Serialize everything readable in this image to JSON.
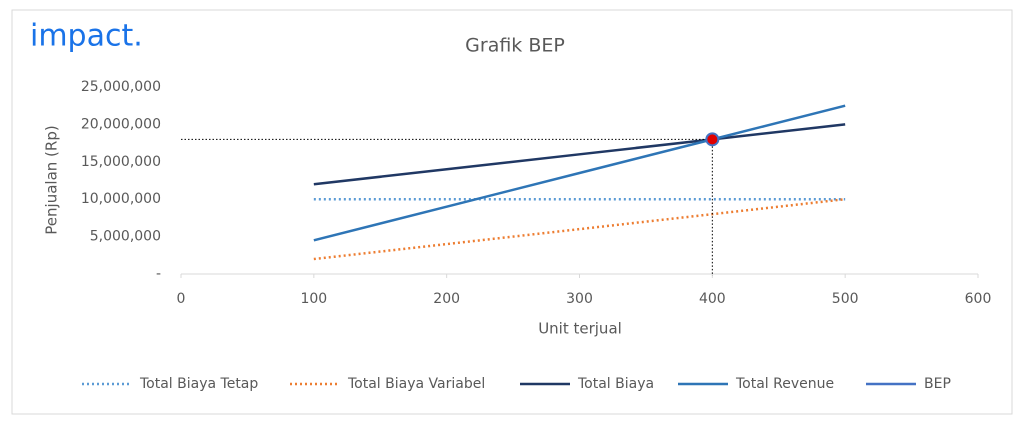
{
  "logo": "impact.",
  "chart_data": {
    "type": "line",
    "title": "Grafik BEP",
    "x_label": "Unit terjual",
    "y_label": "Penjualan (Rp)",
    "x": [
      100,
      200,
      300,
      400,
      500
    ],
    "xlim": [
      0,
      600
    ],
    "xticks": [
      0,
      100,
      200,
      300,
      400,
      500,
      600
    ],
    "ylim": [
      0,
      25000000
    ],
    "yticks": [
      {
        "value": 0,
        "label": "-"
      },
      {
        "value": 5000000,
        "label": "5,000,000"
      },
      {
        "value": 10000000,
        "label": "10,000,000"
      },
      {
        "value": 15000000,
        "label": "15,000,000"
      },
      {
        "value": 20000000,
        "label": "20,000,000"
      },
      {
        "value": 25000000,
        "label": "25,000,000"
      }
    ],
    "grid": false,
    "legend": "bottom",
    "series": [
      {
        "name": "Total Biaya Tetap",
        "color": "#5b9bd5",
        "style": "dotted",
        "values": [
          10000000,
          10000000,
          10000000,
          10000000,
          10000000
        ]
      },
      {
        "name": "Total Biaya Variabel",
        "color": "#ed7d31",
        "style": "dotted",
        "values": [
          2000000,
          4000000,
          6000000,
          8000000,
          10000000
        ]
      },
      {
        "name": "Total Biaya",
        "color": "#203864",
        "style": "solid",
        "values": [
          12000000,
          14000000,
          16000000,
          18000000,
          20000000
        ]
      },
      {
        "name": "Total Revenue",
        "color": "#2e75b6",
        "style": "solid",
        "values": [
          4500000,
          9000000,
          13500000,
          18000000,
          22500000
        ]
      },
      {
        "name": "BEP",
        "color": "#4472c4",
        "marker_fill": "#e00000",
        "style": "marker",
        "x": [
          400
        ],
        "values": [
          18000000
        ]
      }
    ]
  }
}
